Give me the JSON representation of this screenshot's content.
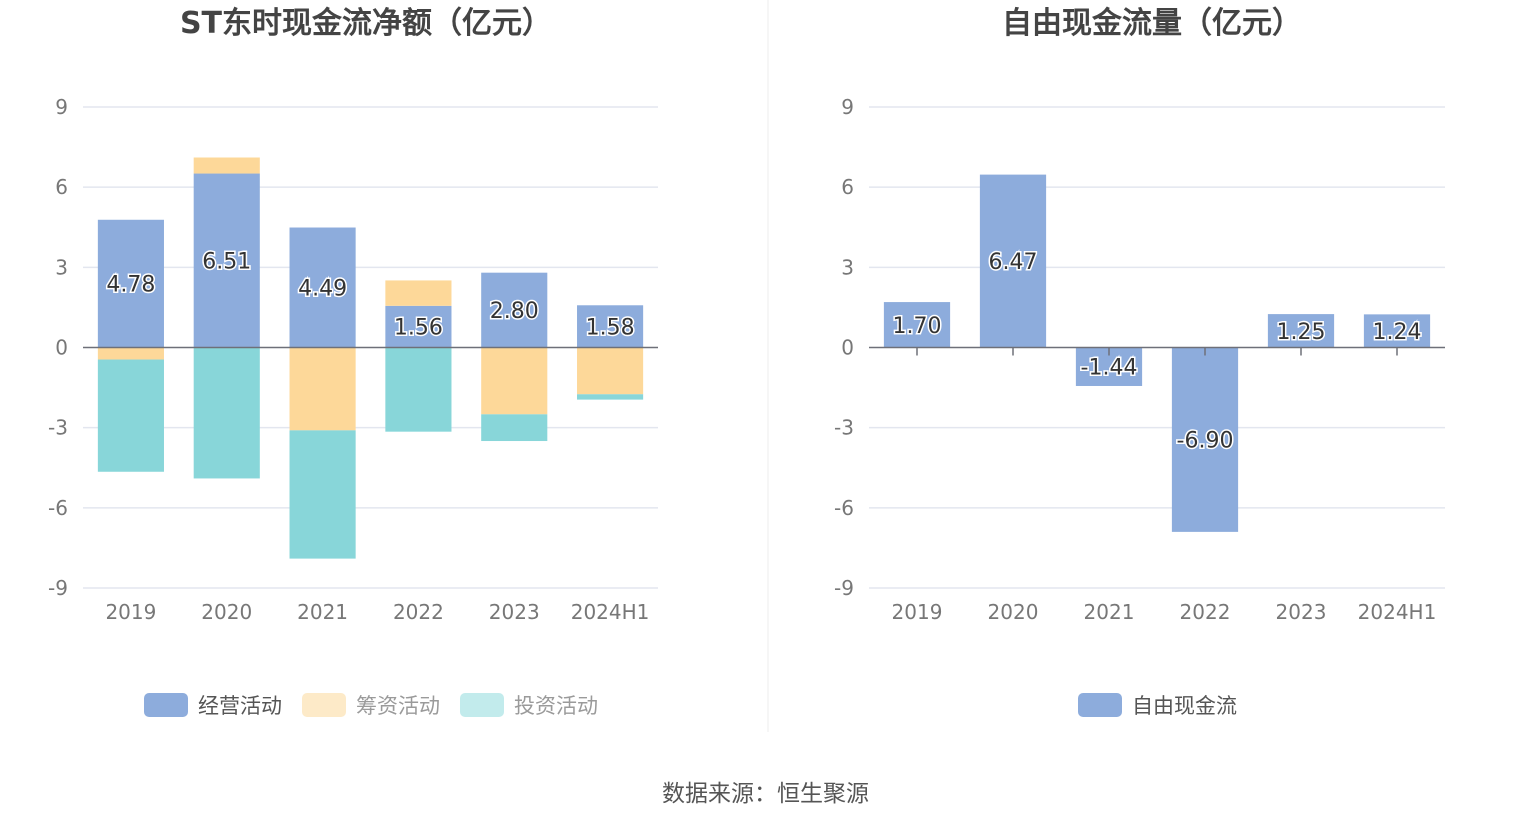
{
  "source": "数据来源：恒生聚源",
  "chart_data": [
    {
      "type": "bar",
      "stacked": true,
      "title": "ST东时现金流净额（亿元）",
      "categories": [
        "2019",
        "2020",
        "2021",
        "2022",
        "2023",
        "2024H1"
      ],
      "ylim": [
        -9,
        9
      ],
      "yticks": [
        9,
        6,
        3,
        0,
        -3,
        -6,
        -9
      ],
      "grid": true,
      "legend_position": "bottom",
      "series": [
        {
          "name": "经营活动",
          "color": "#8dacdc",
          "values": [
            4.78,
            6.51,
            4.49,
            1.56,
            2.8,
            1.58
          ],
          "labels": [
            "4.78",
            "6.51",
            "4.49",
            "1.56",
            "2.80",
            "1.58"
          ]
        },
        {
          "name": "筹资活动",
          "color": "#fdd899",
          "values": [
            -0.45,
            0.6,
            -3.1,
            0.95,
            -2.5,
            -1.75
          ]
        },
        {
          "name": "投资活动",
          "color": "#88d6d9",
          "values": [
            -4.2,
            -4.9,
            -4.8,
            -3.15,
            -1.0,
            -0.2
          ]
        }
      ]
    },
    {
      "type": "bar",
      "title": "自由现金流量（亿元）",
      "categories": [
        "2019",
        "2020",
        "2021",
        "2022",
        "2023",
        "2024H1"
      ],
      "ylim": [
        -9,
        9
      ],
      "yticks": [
        9,
        6,
        3,
        0,
        -3,
        -6,
        -9
      ],
      "grid": true,
      "legend_position": "bottom",
      "series": [
        {
          "name": "自由现金流",
          "color": "#8dacdc",
          "values": [
            1.7,
            6.47,
            -1.44,
            -6.9,
            1.25,
            1.24
          ],
          "labels": [
            "1.70",
            "6.47",
            "-1.44",
            "-6.90",
            "1.25",
            "1.24"
          ]
        }
      ]
    }
  ]
}
